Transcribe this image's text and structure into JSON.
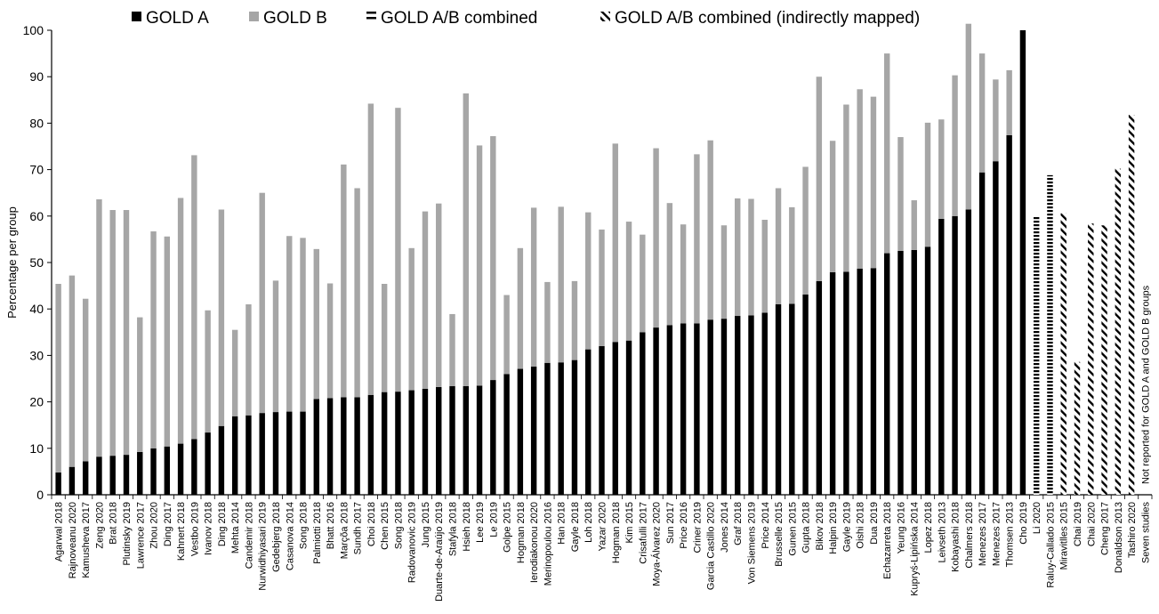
{
  "chart_data": {
    "type": "bar",
    "stacked": true,
    "ylabel": "Percentage per group",
    "ylim": [
      0,
      100
    ],
    "yticks": [
      0,
      10,
      20,
      30,
      40,
      50,
      60,
      70,
      80,
      90,
      100
    ],
    "grid": false,
    "legend_position": "top",
    "legend": [
      {
        "label": "GOLD A",
        "marker": "■",
        "style": "solid-black"
      },
      {
        "label": "GOLD B",
        "marker": "■",
        "style": "solid-gray"
      },
      {
        "label": "GOLD A/B combined",
        "marker": "=",
        "style": "horizontal-hatch"
      },
      {
        "label": "GOLD A/B combined (indirectly mapped)",
        "marker": "⁄⁄",
        "style": "diagonal-hatch"
      }
    ],
    "colors": {
      "gold_a": "#000000",
      "gold_b": "#a6a6a6",
      "hatch": "#000000"
    },
    "categories": [
      "Agarwal 2018",
      "Rajnoveanu 2020",
      "Kamusheva 2017",
      "Zeng 2020",
      "Brat 2018",
      "Plutinsky 2019",
      "Lawrence 2017",
      "Zhou 2020",
      "Ding 2017",
      "Kahnert 2018",
      "Vestbo 2019",
      "Ivanov 2018",
      "Ding 2018",
      "Mehta 2014",
      "Candemir 2018",
      "Nurwidhiyasari 2019",
      "Gedebjerg 2018",
      "Casanova 2014",
      "Song 2018",
      "Palmiotti 2018",
      "Bhatt 2016",
      "Marçõa 2018",
      "Sundh 2017",
      "Choi 2018",
      "Chen 2015",
      "Song 2018",
      "Radovanovic 2019",
      "Jung 2015",
      "Duarte-de-Araújo 2019",
      "Stafyla 2018",
      "Hsieh 2018",
      "Lee 2019",
      "Le 2019",
      "Golpe 2015",
      "Hogman 2018",
      "Ierodiakonou 2020",
      "Merinopoulou 2016",
      "Han 2018",
      "Gayle 2018",
      "Loh 2018",
      "Yazar 2020",
      "Hogman 2018",
      "Kim 2015",
      "Crisafulli 2017",
      "Moya-Álvarez 2020",
      "Sun 2017",
      "Price 2016",
      "Criner 2019",
      "Garcia Castillo 2020",
      "Jones 2014",
      "Graf 2018",
      "Von Siemens 2019",
      "Price 2014",
      "Brusselle 2015",
      "Gunen 2015",
      "Gupta 2018",
      "Bikov 2018",
      "Halpin 2019",
      "Gayle 2019",
      "Oishi 2018",
      "Dua 2019",
      "Echazarreta 2018",
      "Yeung 2016",
      "Kupryś-Lipińska 2014",
      "Lopez 2018",
      "Leivseth 2013",
      "Kobayashi 2018",
      "Chalmers 2018",
      "Menezes 2017",
      "Menezes 2017",
      "Thomsen 2013",
      "Cho 2019",
      "Li 2020",
      "Raluy-Callado 2015",
      "Miravitlles 2015",
      "Chai 2019",
      "Chai 2020",
      "Cheng 2017",
      "Donaldson 2013",
      "Tashiro 2020",
      "Seven studies"
    ],
    "series": [
      {
        "name": "GOLD A",
        "values": [
          4.8,
          6.0,
          7.2,
          8.2,
          8.4,
          8.6,
          9.2,
          10.0,
          10.4,
          11.0,
          12.0,
          13.4,
          14.8,
          16.9,
          17.1,
          17.6,
          17.8,
          17.9,
          17.9,
          20.6,
          20.8,
          21.0,
          21.0,
          21.5,
          22.1,
          22.2,
          22.5,
          22.8,
          23.2,
          23.4,
          23.4,
          23.5,
          24.7,
          26.0,
          27.1,
          27.6,
          28.4,
          28.5,
          29.0,
          31.3,
          32.0,
          32.9,
          33.2,
          35.0,
          36.0,
          36.5,
          36.9,
          36.9,
          37.7,
          37.9,
          38.5,
          38.6,
          39.2,
          41.0,
          41.1,
          43.1,
          46.0,
          47.9,
          48.0,
          48.7,
          48.8,
          52.0,
          52.5,
          52.7,
          53.4,
          59.4,
          60.0,
          61.4,
          69.4,
          71.8,
          77.4,
          100.0,
          null,
          null,
          null,
          null,
          null,
          null,
          null,
          null,
          null
        ]
      },
      {
        "name": "GOLD B",
        "values": [
          40.6,
          41.2,
          35.0,
          55.4,
          52.9,
          52.7,
          29.0,
          46.7,
          45.2,
          52.9,
          61.1,
          26.3,
          46.6,
          18.6,
          23.9,
          47.4,
          28.3,
          37.8,
          37.4,
          32.3,
          24.7,
          50.1,
          45.0,
          62.7,
          23.3,
          61.1,
          30.6,
          38.2,
          39.5,
          15.5,
          63.0,
          51.7,
          52.5,
          17.0,
          26.0,
          34.2,
          17.4,
          33.5,
          17.0,
          29.5,
          25.1,
          42.7,
          25.6,
          21.0,
          38.6,
          26.3,
          21.3,
          36.4,
          38.6,
          20.1,
          25.3,
          25.1,
          20.0,
          25.0,
          20.8,
          27.5,
          44.0,
          28.3,
          36.0,
          38.6,
          36.9,
          43.0,
          24.5,
          10.7,
          26.7,
          21.4,
          30.3,
          40.0,
          25.6,
          17.6,
          14.0,
          0,
          null,
          null,
          null,
          null,
          null,
          null,
          null,
          null,
          null
        ]
      },
      {
        "name": "GOLD A/B combined",
        "values": [
          null,
          null,
          null,
          null,
          null,
          null,
          null,
          null,
          null,
          null,
          null,
          null,
          null,
          null,
          null,
          null,
          null,
          null,
          null,
          null,
          null,
          null,
          null,
          null,
          null,
          null,
          null,
          null,
          null,
          null,
          null,
          null,
          null,
          null,
          null,
          null,
          null,
          null,
          null,
          null,
          null,
          null,
          null,
          null,
          null,
          null,
          null,
          null,
          null,
          null,
          null,
          null,
          null,
          null,
          null,
          null,
          null,
          null,
          null,
          null,
          null,
          null,
          null,
          null,
          null,
          null,
          null,
          null,
          null,
          null,
          null,
          null,
          60.0,
          68.8,
          null,
          null,
          null,
          null,
          null,
          null,
          null
        ]
      },
      {
        "name": "GOLD A/B combined (indirectly mapped)",
        "values": [
          null,
          null,
          null,
          null,
          null,
          null,
          null,
          null,
          null,
          null,
          null,
          null,
          null,
          null,
          null,
          null,
          null,
          null,
          null,
          null,
          null,
          null,
          null,
          null,
          null,
          null,
          null,
          null,
          null,
          null,
          null,
          null,
          null,
          null,
          null,
          null,
          null,
          null,
          null,
          null,
          null,
          null,
          null,
          null,
          null,
          null,
          null,
          null,
          null,
          null,
          null,
          null,
          null,
          null,
          null,
          null,
          null,
          null,
          null,
          null,
          null,
          null,
          null,
          null,
          null,
          null,
          null,
          null,
          null,
          null,
          null,
          null,
          null,
          null,
          60.6,
          28.6,
          58.4,
          58.0,
          70.2,
          81.8,
          null
        ]
      }
    ],
    "annotations": [
      {
        "category": "Seven studies",
        "text": "Not reported for GOLD A and GOLD B groups"
      }
    ]
  }
}
